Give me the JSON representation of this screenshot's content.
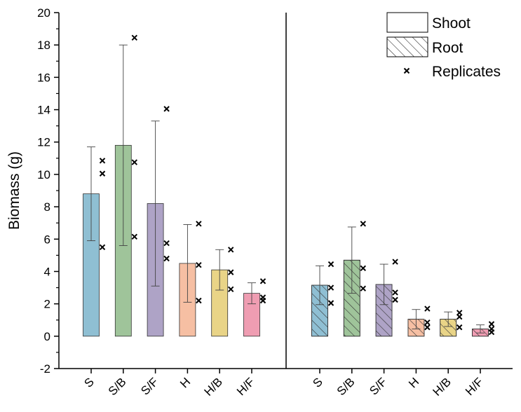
{
  "chart_data": {
    "type": "bar",
    "ylabel": "Biomass (g)",
    "ylim": [
      -2,
      20
    ],
    "yticks": [
      -2,
      0,
      2,
      4,
      6,
      8,
      10,
      12,
      14,
      16,
      18,
      20
    ],
    "grid": false,
    "legend_position": "top-right",
    "legend": [
      {
        "key": "shoot",
        "label": "Shoot"
      },
      {
        "key": "root",
        "label": "Root"
      },
      {
        "key": "replicates",
        "label": "Replicates"
      }
    ],
    "categories": [
      "S",
      "S/B",
      "S/F",
      "H",
      "H/B",
      "H/F"
    ],
    "colors": [
      "#8fbfd3",
      "#9fc49a",
      "#aea3c6",
      "#f6bfa3",
      "#e9d487",
      "#ef9db2"
    ],
    "groups": [
      {
        "key": "shoot",
        "hatch": false,
        "means": [
          8.8,
          11.8,
          8.2,
          4.5,
          4.1,
          2.65
        ],
        "error": [
          2.9,
          6.2,
          5.1,
          2.4,
          1.25,
          0.65
        ],
        "replicates": [
          [
            10.85,
            10.05,
            5.5
          ],
          [
            18.45,
            10.75,
            6.15
          ],
          [
            14.05,
            5.75,
            4.8
          ],
          [
            6.95,
            4.4,
            2.2
          ],
          [
            5.35,
            3.95,
            2.9
          ],
          [
            3.4,
            2.4,
            2.2
          ]
        ]
      },
      {
        "key": "root",
        "hatch": true,
        "means": [
          3.15,
          4.7,
          3.2,
          1.05,
          1.05,
          0.45
        ],
        "error": [
          1.2,
          2.05,
          1.25,
          0.6,
          0.45,
          0.25
        ],
        "replicates": [
          [
            4.45,
            3.0,
            2.05
          ],
          [
            6.95,
            4.2,
            2.95
          ],
          [
            4.6,
            2.7,
            2.25
          ],
          [
            1.7,
            0.85,
            0.55
          ],
          [
            1.45,
            1.2,
            0.55
          ],
          [
            0.75,
            0.45,
            0.25
          ]
        ]
      }
    ]
  }
}
